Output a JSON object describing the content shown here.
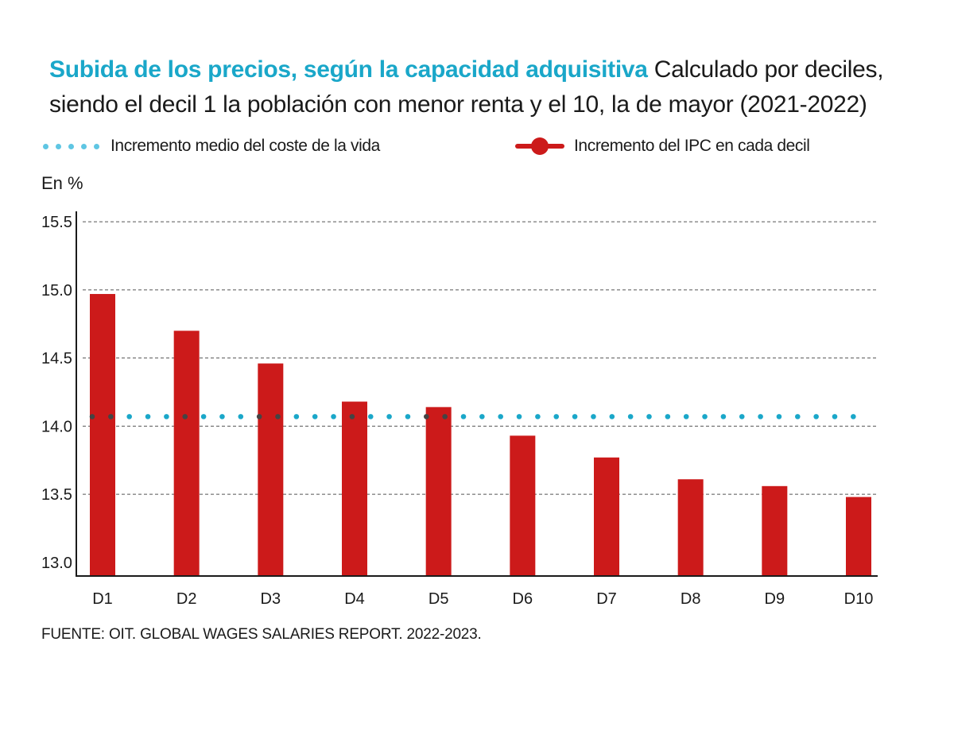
{
  "title": {
    "main": "Subida de los precios, según la capacidad adquisitiva",
    "sub": "Calculado por deciles, siendo el decil 1 la población con menor renta y el 10, la de mayor (2021-2022)"
  },
  "legend": {
    "average_label": "Incremento medio del coste de la vida",
    "ipc_label": "Incremento del IPC en cada decil"
  },
  "unit_label": "En %",
  "source": "FUENTE: OIT. GLOBAL WAGES SALARIES REPORT. 2022-2023.",
  "colors": {
    "bar": "#cc1a1a",
    "average": "#1aa7c9",
    "title_accent": "#1aa7c9"
  },
  "chart_data": {
    "type": "bar",
    "categories": [
      "D1",
      "D2",
      "D3",
      "D4",
      "D5",
      "D6",
      "D7",
      "D8",
      "D9",
      "D10"
    ],
    "series": [
      {
        "name": "Incremento del IPC en cada decil",
        "values": [
          14.97,
          14.7,
          14.46,
          14.18,
          14.14,
          13.93,
          13.77,
          13.61,
          13.56,
          13.48
        ]
      }
    ],
    "reference_line": {
      "name": "Incremento medio del coste de la vida",
      "value": 14.07
    },
    "ylabel": "En %",
    "ylim": [
      12.9,
      15.6
    ],
    "yticks": [
      13.0,
      13.5,
      14.0,
      14.5,
      15.0,
      15.5
    ],
    "ytick_labels": [
      "13.0",
      "13.5",
      "14.0",
      "14.5",
      "15.0",
      "15.5"
    ],
    "grid": true
  }
}
